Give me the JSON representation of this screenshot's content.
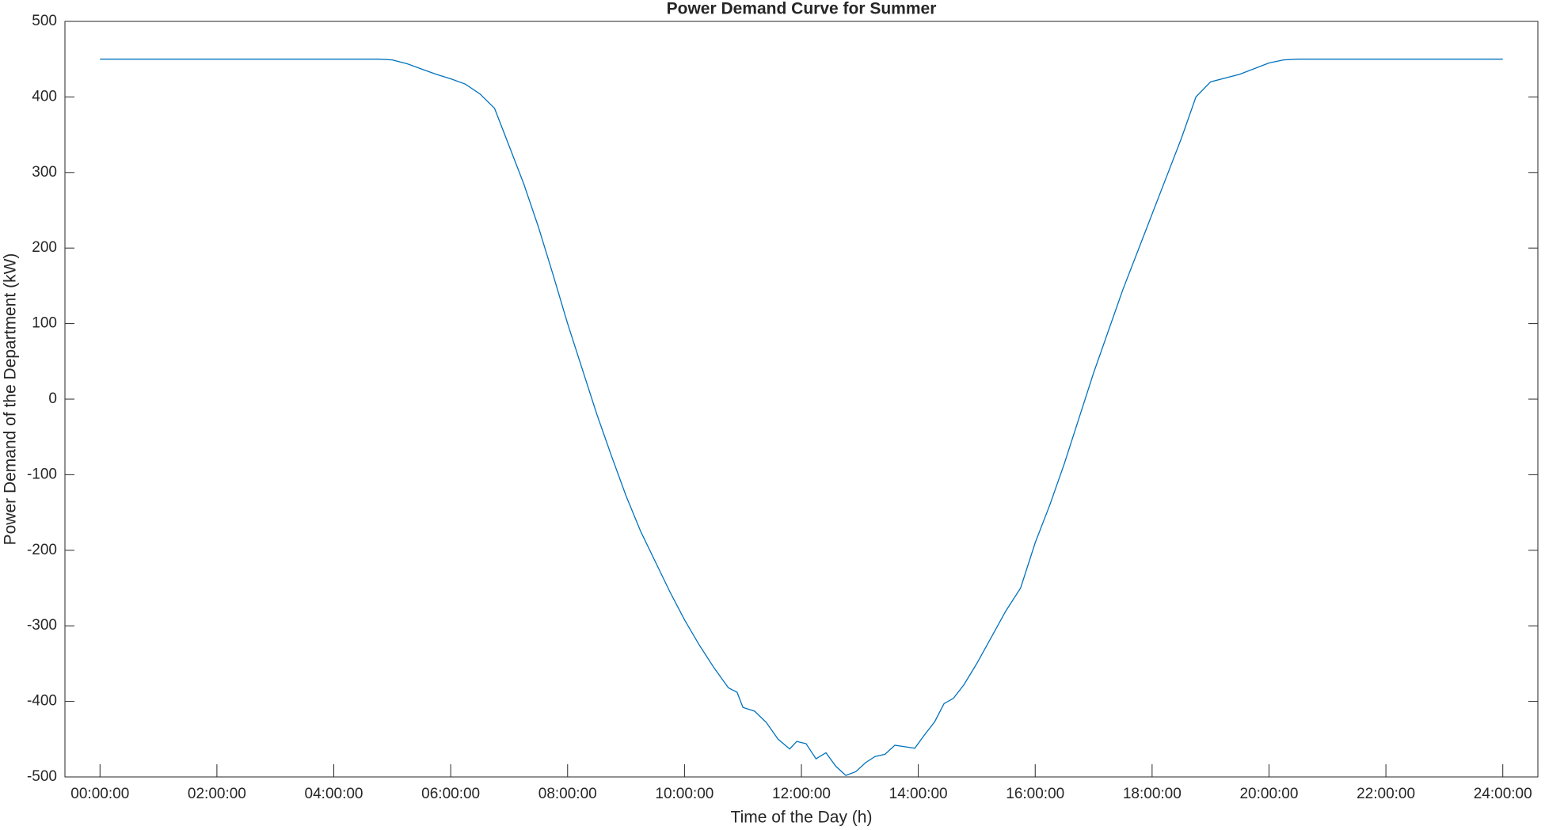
{
  "chart_data": {
    "type": "line",
    "title": "Power Demand Curve for Summer",
    "xlabel": "Time of the Day (h)",
    "ylabel": "Power Demand of the Department (kW)",
    "series": [
      {
        "color": "#0072bd",
        "x": [
          0,
          1,
          2,
          3,
          4,
          4.75,
          5.0,
          5.25,
          5.5,
          5.75,
          6.0,
          6.25,
          6.5,
          6.75,
          7.0,
          7.25,
          7.5,
          7.75,
          8.0,
          8.25,
          8.5,
          8.75,
          9.0,
          9.25,
          9.5,
          9.75,
          10.0,
          10.25,
          10.5,
          10.75,
          10.9,
          11.0,
          11.2,
          11.4,
          11.6,
          11.8,
          11.92,
          12.08,
          12.25,
          12.42,
          12.59,
          12.76,
          12.93,
          13.1,
          13.26,
          13.43,
          13.6,
          13.77,
          13.94,
          14.1,
          14.28,
          14.44,
          14.6,
          14.78,
          15.0,
          15.25,
          15.5,
          15.75,
          16.0,
          16.25,
          16.5,
          16.75,
          17.0,
          17.25,
          17.5,
          17.75,
          18.0,
          18.25,
          18.5,
          18.75,
          19.0,
          19.5,
          20.0,
          20.25,
          20.5,
          21,
          22,
          23,
          24
        ],
        "values": [
          450,
          450,
          450,
          450,
          450,
          450,
          449,
          444,
          437,
          430,
          424,
          417,
          404,
          385,
          335,
          285,
          228,
          165,
          100,
          40,
          -20,
          -75,
          -128,
          -175,
          -215,
          -255,
          -292,
          -325,
          -355,
          -382,
          -388,
          -408,
          -413,
          -428,
          -450,
          -463,
          -453,
          -456,
          -476,
          -468,
          -486,
          -498,
          -493,
          -481,
          -473,
          -470,
          -458,
          -460,
          -462,
          -445,
          -427,
          -403,
          -396,
          -378,
          -350,
          -315,
          -280,
          -250,
          -190,
          -140,
          -85,
          -25,
          35,
          90,
          145,
          195,
          245,
          295,
          345,
          400,
          420,
          430,
          445,
          449,
          450,
          450,
          450,
          450,
          450
        ]
      }
    ],
    "xlim": [
      -0.6,
      24.6
    ],
    "xticks": [
      {
        "value": 0,
        "label": "00:00:00"
      },
      {
        "value": 2,
        "label": "02:00:00"
      },
      {
        "value": 4,
        "label": "04:00:00"
      },
      {
        "value": 6,
        "label": "06:00:00"
      },
      {
        "value": 8,
        "label": "08:00:00"
      },
      {
        "value": 10,
        "label": "10:00:00"
      },
      {
        "value": 12,
        "label": "12:00:00"
      },
      {
        "value": 14,
        "label": "14:00:00"
      },
      {
        "value": 16,
        "label": "16:00:00"
      },
      {
        "value": 18,
        "label": "18:00:00"
      },
      {
        "value": 20,
        "label": "20:00:00"
      },
      {
        "value": 22,
        "label": "22:00:00"
      },
      {
        "value": 24,
        "label": "24:00:00"
      }
    ],
    "ylim": [
      -500,
      500
    ],
    "yticks": [
      -500,
      -400,
      -300,
      -200,
      -100,
      0,
      100,
      200,
      300,
      400,
      500
    ],
    "grid": false
  }
}
